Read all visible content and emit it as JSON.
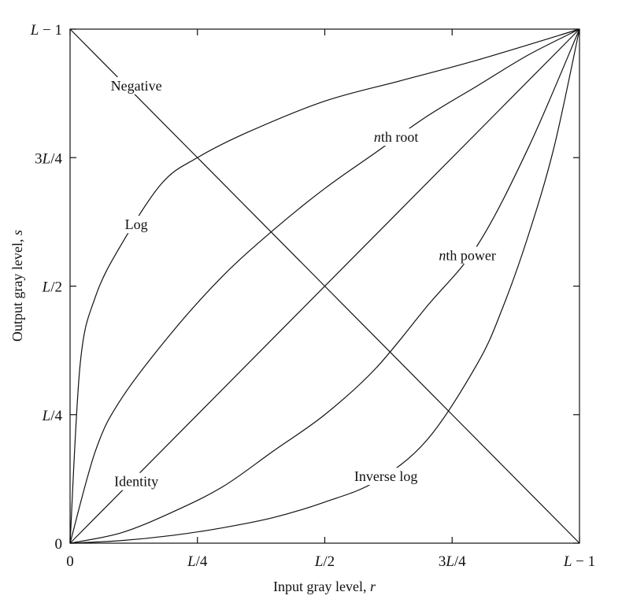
{
  "chart_data": {
    "type": "line",
    "title": "",
    "xlabel": "Input gray level, r",
    "ylabel": "Output gray level, s",
    "xlim": [
      0,
      1
    ],
    "ylim": [
      0,
      1
    ],
    "grid": false,
    "x_ticks": [
      {
        "value": 0,
        "label": "0"
      },
      {
        "value": 0.25,
        "label": "L/4"
      },
      {
        "value": 0.5,
        "label": "L/2"
      },
      {
        "value": 0.75,
        "label": "3L/4"
      },
      {
        "value": 1,
        "label": "L − 1"
      }
    ],
    "y_ticks": [
      {
        "value": 0,
        "label": "0"
      },
      {
        "value": 0.25,
        "label": "L/4"
      },
      {
        "value": 0.5,
        "label": "L/2"
      },
      {
        "value": 0.75,
        "label": "3L/4"
      },
      {
        "value": 1,
        "label": "L − 1"
      }
    ],
    "series": [
      {
        "name": "Negative",
        "x": [
          0,
          0.25,
          0.5,
          0.75,
          1
        ],
        "y": [
          1,
          0.75,
          0.5,
          0.25,
          0
        ],
        "label_at": [
          0.13,
          0.89
        ]
      },
      {
        "name": "Log",
        "x": [
          0,
          0.02,
          0.05,
          0.1,
          0.18,
          0.25,
          0.35,
          0.5,
          0.65,
          0.8,
          1
        ],
        "y": [
          0,
          0.35,
          0.48,
          0.58,
          0.7,
          0.75,
          0.8,
          0.86,
          0.9,
          0.94,
          1
        ],
        "label_at": [
          0.13,
          0.62
        ]
      },
      {
        "name": "nth root",
        "x": [
          0,
          0.05,
          0.1,
          0.2,
          0.3,
          0.4,
          0.5,
          0.6,
          0.7,
          0.8,
          0.9,
          1
        ],
        "y": [
          0,
          0.18,
          0.28,
          0.41,
          0.52,
          0.61,
          0.69,
          0.76,
          0.83,
          0.89,
          0.95,
          1
        ],
        "label_at": [
          0.64,
          0.79
        ]
      },
      {
        "name": "Identity",
        "x": [
          0,
          1
        ],
        "y": [
          0,
          1
        ],
        "label_at": [
          0.13,
          0.12
        ]
      },
      {
        "name": "nth power",
        "x": [
          0,
          0.1,
          0.2,
          0.3,
          0.4,
          0.5,
          0.6,
          0.7,
          0.8,
          0.9,
          1
        ],
        "y": [
          0,
          0.02,
          0.06,
          0.11,
          0.18,
          0.25,
          0.34,
          0.46,
          0.58,
          0.77,
          1
        ],
        "label_at": [
          0.78,
          0.56
        ]
      },
      {
        "name": "Inverse log",
        "x": [
          0,
          0.1,
          0.2,
          0.3,
          0.4,
          0.5,
          0.6,
          0.7,
          0.8,
          0.85,
          0.9,
          0.95,
          1
        ],
        "y": [
          0,
          0.005,
          0.015,
          0.03,
          0.05,
          0.08,
          0.12,
          0.2,
          0.35,
          0.46,
          0.6,
          0.77,
          1
        ],
        "label_at": [
          0.62,
          0.13
        ]
      }
    ]
  }
}
